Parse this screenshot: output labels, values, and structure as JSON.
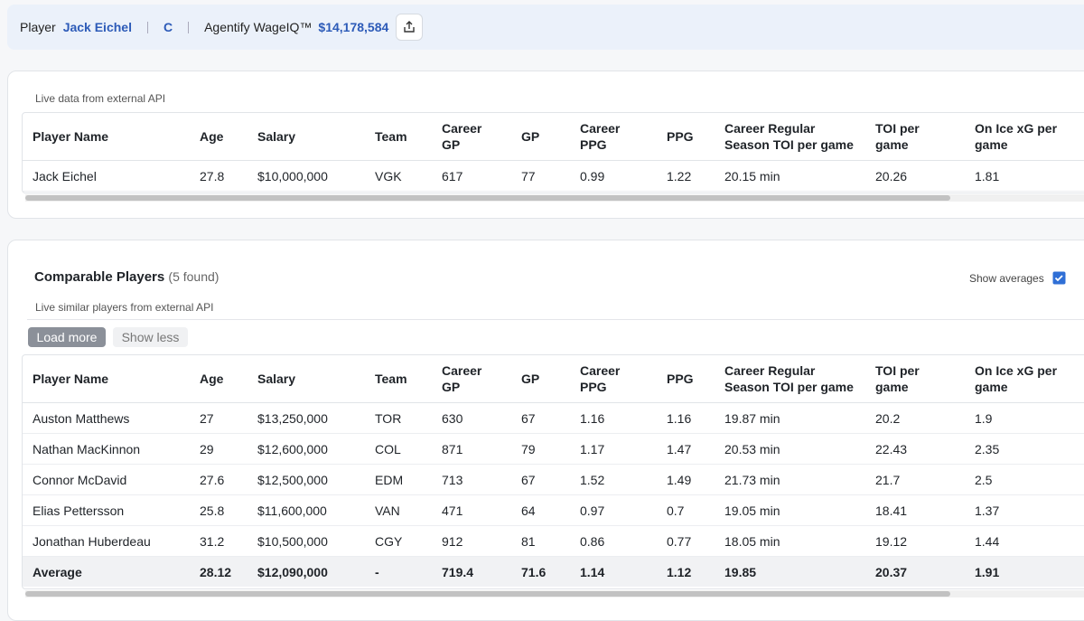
{
  "header": {
    "player_label": "Player",
    "player_name": "Jack Eichel",
    "position": "C",
    "wageiq_label": "Agentify WageIQ™",
    "wageiq_value": "$14,178,584"
  },
  "player_table": {
    "note": "Live data from external API",
    "columns": [
      "Player Name",
      "Age",
      "Salary",
      "Team",
      "Career GP",
      "GP",
      "Career PPG",
      "PPG",
      "Career Regular Season TOI per game",
      "TOI per game",
      "On Ice xG per game"
    ],
    "rows": [
      [
        "Jack Eichel",
        "27.8",
        "$10,000,000",
        "VGK",
        "617",
        "77",
        "0.99",
        "1.22",
        "20.15 min",
        "20.26",
        "1.81"
      ]
    ]
  },
  "comparables": {
    "title": "Comparable Players",
    "count": "(5 found)",
    "show_averages": "Show averages",
    "note": "Live similar players from external API",
    "load_more": "Load more",
    "show_less": "Show less",
    "columns": [
      "Player Name",
      "Age",
      "Salary",
      "Team",
      "Career GP",
      "GP",
      "Career PPG",
      "PPG",
      "Career Regular Season TOI per game",
      "TOI per game",
      "On Ice xG per game"
    ],
    "rows": [
      [
        "Auston Matthews",
        "27",
        "$13,250,000",
        "TOR",
        "630",
        "67",
        "1.16",
        "1.16",
        "19.87 min",
        "20.2",
        "1.9"
      ],
      [
        "Nathan MacKinnon",
        "29",
        "$12,600,000",
        "COL",
        "871",
        "79",
        "1.17",
        "1.47",
        "20.53 min",
        "22.43",
        "2.35"
      ],
      [
        "Connor McDavid",
        "27.6",
        "$12,500,000",
        "EDM",
        "713",
        "67",
        "1.52",
        "1.49",
        "21.73 min",
        "21.7",
        "2.5"
      ],
      [
        "Elias Pettersson",
        "25.8",
        "$11,600,000",
        "VAN",
        "471",
        "64",
        "0.97",
        "0.7",
        "19.05 min",
        "18.41",
        "1.37"
      ],
      [
        "Jonathan Huberdeau",
        "31.2",
        "$10,500,000",
        "CGY",
        "912",
        "81",
        "0.86",
        "0.77",
        "18.05 min",
        "19.12",
        "1.44"
      ]
    ],
    "average": [
      "Average",
      "28.12",
      "$12,090,000",
      "-",
      "719.4",
      "71.6",
      "1.14",
      "1.12",
      "19.85",
      "20.37",
      "1.91"
    ]
  }
}
